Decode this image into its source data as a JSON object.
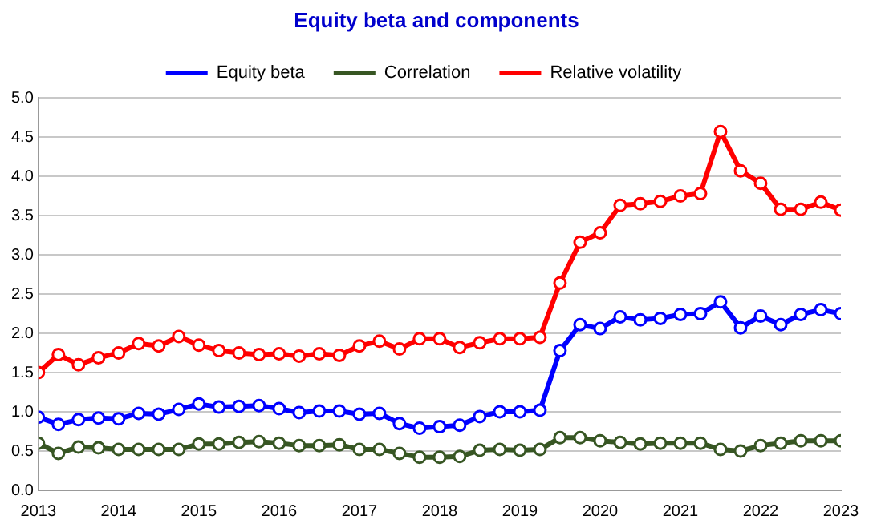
{
  "chart_data": {
    "type": "line",
    "title": "Equity beta and components",
    "x": [
      2013,
      2013.25,
      2013.5,
      2013.75,
      2014,
      2014.25,
      2014.5,
      2014.75,
      2015,
      2015.25,
      2015.5,
      2015.75,
      2016,
      2016.25,
      2016.5,
      2016.75,
      2017,
      2017.25,
      2017.5,
      2017.75,
      2018,
      2018.25,
      2018.5,
      2018.75,
      2019,
      2019.25,
      2019.5,
      2019.75,
      2020,
      2020.25,
      2020.5,
      2020.75,
      2021,
      2021.25,
      2021.5,
      2021.75,
      2022,
      2022.25,
      2022.5,
      2022.75,
      2023
    ],
    "series": [
      {
        "name": "Equity beta",
        "color": "#0000ff",
        "values": [
          0.93,
          0.84,
          0.9,
          0.92,
          0.91,
          0.98,
          0.97,
          1.03,
          1.1,
          1.06,
          1.07,
          1.08,
          1.04,
          0.99,
          1.01,
          1.01,
          0.97,
          0.98,
          0.85,
          0.79,
          0.81,
          0.83,
          0.94,
          1.0,
          1.0,
          1.02,
          1.78,
          2.11,
          2.06,
          2.21,
          2.17,
          2.19,
          2.24,
          2.25,
          2.4,
          2.07,
          2.22,
          2.11,
          2.24,
          2.3,
          2.25
        ]
      },
      {
        "name": "Correlation",
        "color": "#375623",
        "values": [
          0.6,
          0.47,
          0.55,
          0.54,
          0.52,
          0.52,
          0.52,
          0.52,
          0.59,
          0.59,
          0.61,
          0.62,
          0.6,
          0.57,
          0.57,
          0.58,
          0.52,
          0.52,
          0.47,
          0.42,
          0.42,
          0.43,
          0.51,
          0.52,
          0.51,
          0.52,
          0.67,
          0.67,
          0.63,
          0.61,
          0.59,
          0.6,
          0.6,
          0.6,
          0.52,
          0.5,
          0.57,
          0.6,
          0.63,
          0.63,
          0.63
        ]
      },
      {
        "name": "Relative volatility",
        "color": "#ff0000",
        "values": [
          1.5,
          1.73,
          1.6,
          1.69,
          1.75,
          1.87,
          1.84,
          1.96,
          1.85,
          1.78,
          1.75,
          1.73,
          1.74,
          1.71,
          1.74,
          1.72,
          1.84,
          1.9,
          1.8,
          1.93,
          1.93,
          1.82,
          1.88,
          1.93,
          1.93,
          1.95,
          2.64,
          3.16,
          3.28,
          3.63,
          3.65,
          3.68,
          3.75,
          3.78,
          4.57,
          4.07,
          3.91,
          3.58,
          3.58,
          3.67,
          3.57
        ]
      }
    ],
    "xlim": [
      2013,
      2023
    ],
    "xticks": [
      2013,
      2014,
      2015,
      2016,
      2017,
      2018,
      2019,
      2020,
      2021,
      2022,
      2023
    ],
    "ylim": [
      0,
      5
    ],
    "yticks": [
      {
        "value": 0,
        "label": "0.0"
      },
      {
        "value": 0.5,
        "label": "0.5"
      },
      {
        "value": 1,
        "label": "1.0"
      },
      {
        "value": 1.5,
        "label": "1.5"
      },
      {
        "value": 2,
        "label": "2.0"
      },
      {
        "value": 2.5,
        "label": "2.5"
      },
      {
        "value": 3,
        "label": "3.0"
      },
      {
        "value": 3.5,
        "label": "3.5"
      },
      {
        "value": 4,
        "label": "4.0"
      },
      {
        "value": 4.5,
        "label": "4.5"
      },
      {
        "value": 5,
        "label": "5.0"
      }
    ],
    "grid": "y",
    "legend": "top",
    "marker": "circle",
    "line_style": "solid"
  }
}
